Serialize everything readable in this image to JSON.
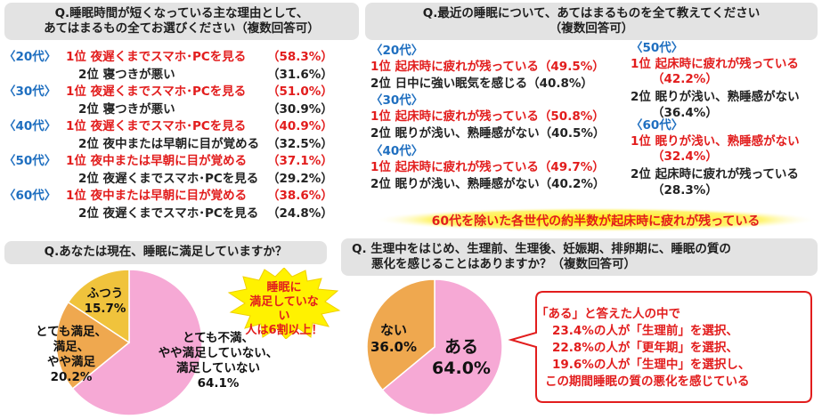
{
  "q1": {
    "title_line1": "Q.睡眠時間が短くなっている主な理由として、",
    "title_line2": "あてはまるもの全てお選びください（複数回答可）",
    "rows": [
      {
        "age": "〈20代〉",
        "r1_rank": "1位",
        "r1_text": "夜遅くまでスマホ･PCを見る",
        "r1_pct": "（58.3%）",
        "r2_rank": "2位",
        "r2_text": "寝つきが悪い",
        "r2_pct": "（31.6%）"
      },
      {
        "age": "〈30代〉",
        "r1_rank": "1位",
        "r1_text": "夜遅くまでスマホ･PCを見る",
        "r1_pct": "（51.0%）",
        "r2_rank": "2位",
        "r2_text": "寝つきが悪い",
        "r2_pct": "（30.9%）"
      },
      {
        "age": "〈40代〉",
        "r1_rank": "1位",
        "r1_text": "夜遅くまでスマホ･PCを見る",
        "r1_pct": "（40.9%）",
        "r2_rank": "2位",
        "r2_text": "夜中または早朝に目が覚める",
        "r2_pct": "（32.5%）"
      },
      {
        "age": "〈50代〉",
        "r1_rank": "1位",
        "r1_text": "夜中または早朝に目が覚める",
        "r1_pct": "（37.1%）",
        "r2_rank": "2位",
        "r2_text": "夜遅くまでスマホ･PCを見る",
        "r2_pct": "（29.2%）"
      },
      {
        "age": "〈60代〉",
        "r1_rank": "1位",
        "r1_text": "夜中または早朝に目が覚める",
        "r1_pct": "（38.6%）",
        "r2_rank": "2位",
        "r2_text": "夜遅くまでスマホ･PCを見る",
        "r2_pct": "（24.8%）"
      }
    ]
  },
  "q2": {
    "title_line1": "Q.最近の睡眠について、あてはまるものを全て教えてください",
    "title_line2": "（複数回答可）",
    "groups": [
      {
        "age": "〈20代〉",
        "r1": "1位 起床時に疲れが残っている（49.5%）",
        "r2": "2位 日中に強い眠気を感じる（40.8%）"
      },
      {
        "age": "〈30代〉",
        "r1": "1位 起床時に疲れが残っている（50.8%）",
        "r2": "2位 眠りが浅い、熟睡感がない（40.5%）"
      },
      {
        "age": "〈40代〉",
        "r1": "1位 起床時に疲れが残っている（49.7%）",
        "r2": "2位 眠りが浅い、熟睡感がない（40.2%）"
      },
      {
        "age": "〈50代〉",
        "r1": "1位 起床時に疲れが残っている",
        "r1b": "（42.2%）",
        "r2": "2位 眠りが浅い、熟睡感がない",
        "r2b": "（36.4%）"
      },
      {
        "age": "〈60代〉",
        "r1": "1位 眠りが浅い、熟睡感がない",
        "r1b": "（32.4%）",
        "r2": "2位 起床時に疲れが残っている",
        "r2b": "（28.3%）"
      }
    ],
    "banner": "60代を除いた各世代の約半数が起床時に疲れが残っている"
  },
  "q3": {
    "title": "Q.あなたは現在、睡眠に満足していますか？",
    "note": [
      "睡眠に",
      "満足していない",
      "人は6割以上！"
    ]
  },
  "q4": {
    "title_line1": "Q. 生理中をはじめ、生理前、生理後、妊娠期、排卵期に、睡眠の質の",
    "title_line2": "悪化を感じることはありますか？（複数回答可）",
    "callout": [
      "「ある」と答えた人の中で",
      "23.4%の人が「生理前」を選択、",
      "22.8%の人が「更年期」を選択、",
      "19.6%の人が「生理中」を選択し、",
      "この期間睡眠の質の悪化を感じている"
    ]
  },
  "chart_data": [
    {
      "type": "pie",
      "title": "Q.あなたは現在、睡眠に満足していますか？",
      "slices": [
        {
          "label": "とても不満、やや満足していない、満足していない",
          "label_lines": [
            "とても不満、",
            "やや満足していない、",
            "満足していない"
          ],
          "value": 64.1,
          "value_text": "64.1%",
          "color": "#f6a9d5"
        },
        {
          "label": "とても満足、満足、やや満足",
          "label_lines": [
            "とても満足、",
            "満足、",
            "やや満足"
          ],
          "value": 20.2,
          "value_text": "20.2%",
          "color": "#efa84f"
        },
        {
          "label": "ふつう",
          "label_lines": [
            "ふつう"
          ],
          "value": 15.7,
          "value_text": "15.7%",
          "color": "#f0c33c"
        }
      ]
    },
    {
      "type": "pie",
      "title": "Q. 生理中をはじめ、生理前、生理後、妊娠期、排卵期に、睡眠の質の悪化を感じることはありますか？（複数回答可）",
      "slices": [
        {
          "label": "ある",
          "value": 64.0,
          "value_text": "64.0%",
          "color": "#f6a9d5"
        },
        {
          "label": "ない",
          "value": 36.0,
          "value_text": "36.0%",
          "color": "#efa84f"
        }
      ]
    }
  ]
}
